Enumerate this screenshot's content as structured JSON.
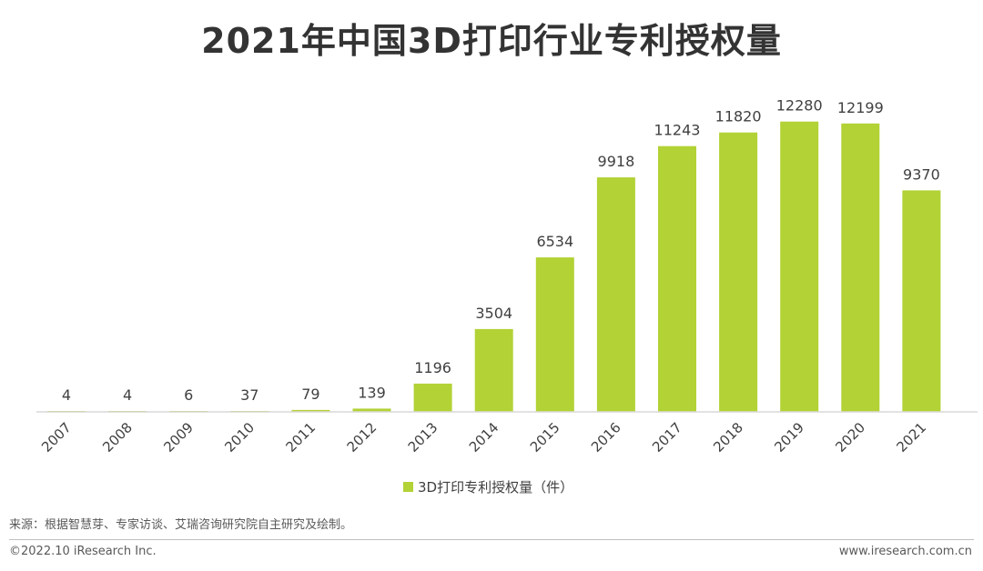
{
  "header": {
    "title": "2021年中国3D打印行业专利授权量"
  },
  "chart_data": {
    "type": "bar",
    "title": "2021年中国3D打印行业专利授权量",
    "categories": [
      "2007",
      "2008",
      "2009",
      "2010",
      "2011",
      "2012",
      "2013",
      "2014",
      "2015",
      "2016",
      "2017",
      "2018",
      "2019",
      "2020",
      "2021"
    ],
    "series": [
      {
        "name": "3D打印专利授权量（件）",
        "values": [
          4,
          4,
          6,
          37,
          79,
          139,
          1196,
          3504,
          6534,
          9918,
          11243,
          11820,
          12280,
          12199,
          9370
        ],
        "color": "#b2d235"
      }
    ],
    "xlabel": "",
    "ylabel": "",
    "ylim": [
      0,
      14000
    ],
    "grid": false,
    "legend": "bottom"
  },
  "footer": {
    "source": "来源：根据智慧芽、专家访谈、艾瑞咨询研究院自主研究及绘制。",
    "copyright": "©2022.10 iResearch Inc.",
    "website": "www.iresearch.com.cn"
  },
  "colors": {
    "bar": "#b2d235",
    "axis": "#d9d9d9",
    "text": "#404040"
  }
}
